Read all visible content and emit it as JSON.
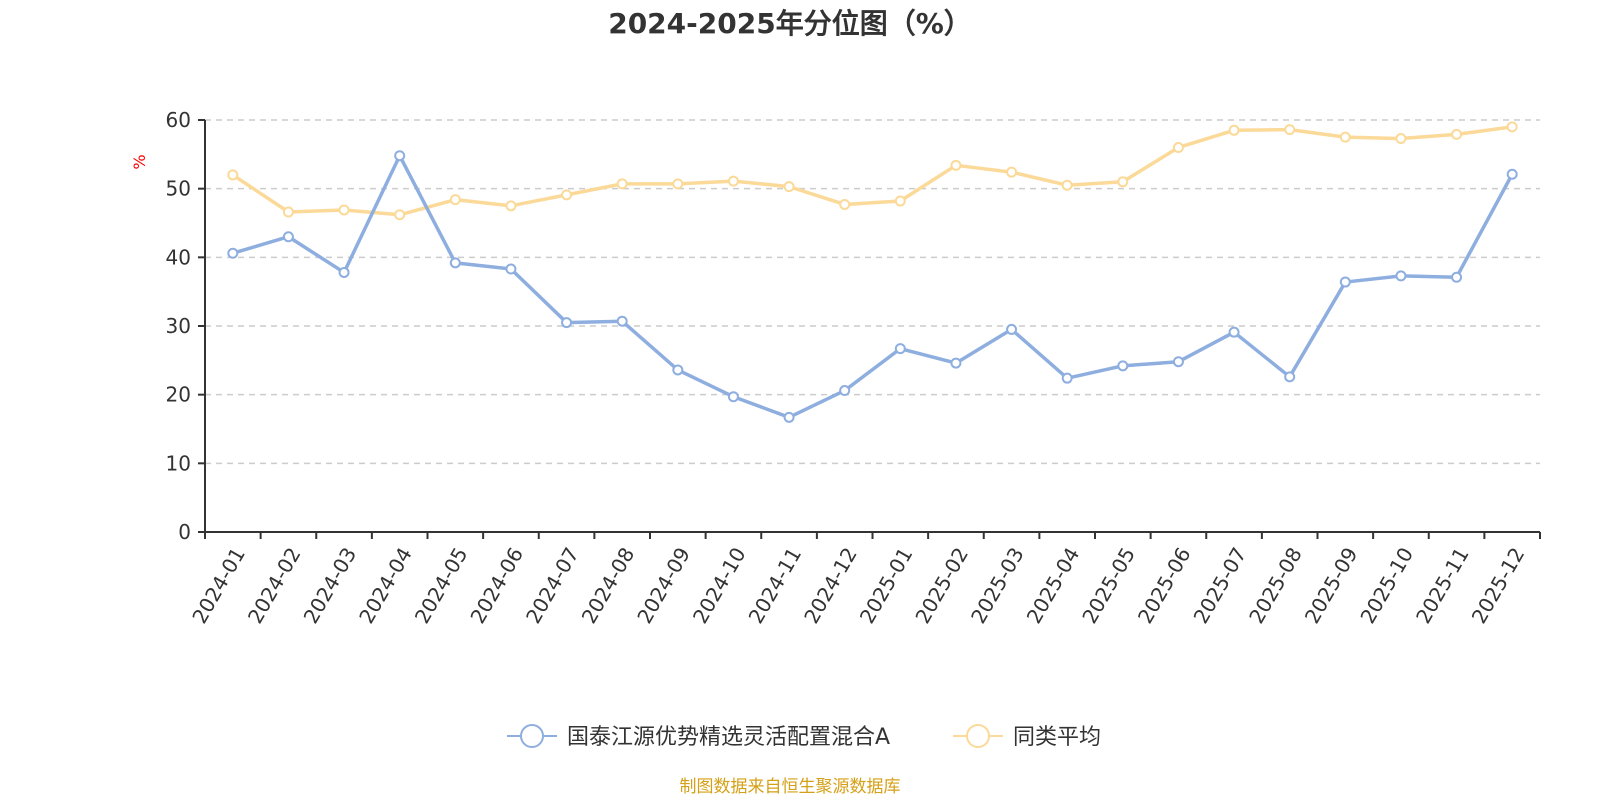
{
  "chart_data": {
    "type": "line",
    "title": "2024-2025年分位图（%）",
    "ylabel": "%",
    "xlabel": "",
    "ylim": [
      0,
      60
    ],
    "yticks": [
      0,
      10,
      20,
      30,
      40,
      50,
      60
    ],
    "grid": true,
    "categories": [
      "2024-01",
      "2024-02",
      "2024-03",
      "2024-04",
      "2024-05",
      "2024-06",
      "2024-07",
      "2024-08",
      "2024-09",
      "2024-10",
      "2024-11",
      "2024-12",
      "2025-01",
      "2025-02",
      "2025-03",
      "2025-04",
      "2025-05",
      "2025-06",
      "2025-07",
      "2025-08",
      "2025-09",
      "2025-10",
      "2025-11",
      "2025-12"
    ],
    "series": [
      {
        "name": "国泰江源优势精选灵活配置混合A",
        "color": "#8eaee0",
        "values": [
          40.6,
          43.0,
          37.8,
          54.8,
          39.2,
          38.3,
          30.5,
          30.7,
          23.6,
          19.7,
          16.7,
          20.6,
          26.7,
          24.6,
          29.5,
          22.4,
          24.2,
          24.8,
          29.1,
          22.6,
          36.4,
          37.3,
          37.1,
          52.1
        ]
      },
      {
        "name": "同类平均",
        "color": "#fbd998",
        "values": [
          52.0,
          46.6,
          46.9,
          46.2,
          48.4,
          47.5,
          49.1,
          50.7,
          50.7,
          51.1,
          50.3,
          47.7,
          48.2,
          53.4,
          52.4,
          50.5,
          51.0,
          56.0,
          58.5,
          58.6,
          57.5,
          57.3,
          57.9,
          59.0
        ]
      }
    ],
    "legend_position": "bottom-center"
  },
  "source_text": "制图数据来自恒生聚源数据库",
  "colors": {
    "axis": "#333333",
    "grid": "#cccccc",
    "unit": "#ff0000",
    "source": "#d4a017"
  }
}
